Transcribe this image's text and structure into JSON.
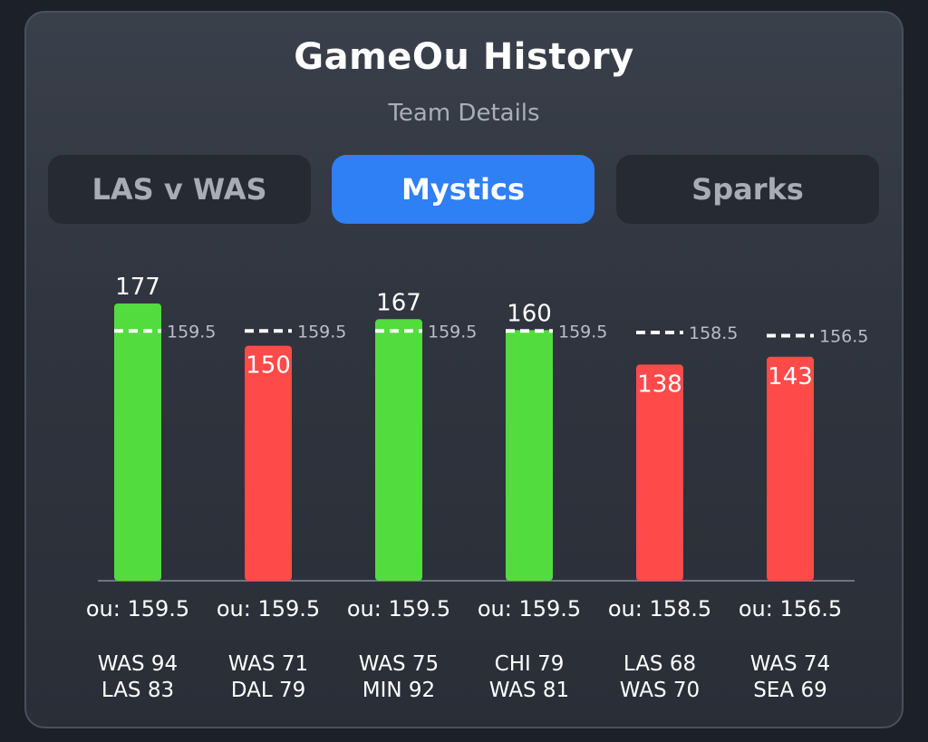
{
  "header": {
    "title": "GameOu History",
    "subtitle": "Team Details"
  },
  "tabs": [
    {
      "label": "LAS v WAS",
      "active": false
    },
    {
      "label": "Mystics",
      "active": true
    },
    {
      "label": "Sparks",
      "active": false
    }
  ],
  "colors": {
    "over": "#52dc3e",
    "under": "#ff4a4a",
    "accent": "#2f7ff5",
    "line": "#ffffff"
  },
  "chart_data": {
    "type": "bar",
    "ylim": [
      0,
      177
    ],
    "bars": [
      {
        "total": 177,
        "line": 159.5,
        "ou_label": "ou: 159.5",
        "team1": "WAS 94",
        "team2": "LAS 83",
        "result": "over"
      },
      {
        "total": 150,
        "line": 159.5,
        "ou_label": "ou: 159.5",
        "team1": "WAS 71",
        "team2": "DAL 79",
        "result": "under"
      },
      {
        "total": 167,
        "line": 159.5,
        "ou_label": "ou: 159.5",
        "team1": "WAS 75",
        "team2": "MIN 92",
        "result": "over"
      },
      {
        "total": 160,
        "line": 159.5,
        "ou_label": "ou: 159.5",
        "team1": "CHI 79",
        "team2": "WAS 81",
        "result": "over"
      },
      {
        "total": 138,
        "line": 158.5,
        "ou_label": "ou: 158.5",
        "team1": "LAS 68",
        "team2": "WAS 70",
        "result": "under"
      },
      {
        "total": 143,
        "line": 156.5,
        "ou_label": "ou: 156.5",
        "team1": "WAS 74",
        "team2": "SEA 69",
        "result": "under"
      }
    ]
  }
}
